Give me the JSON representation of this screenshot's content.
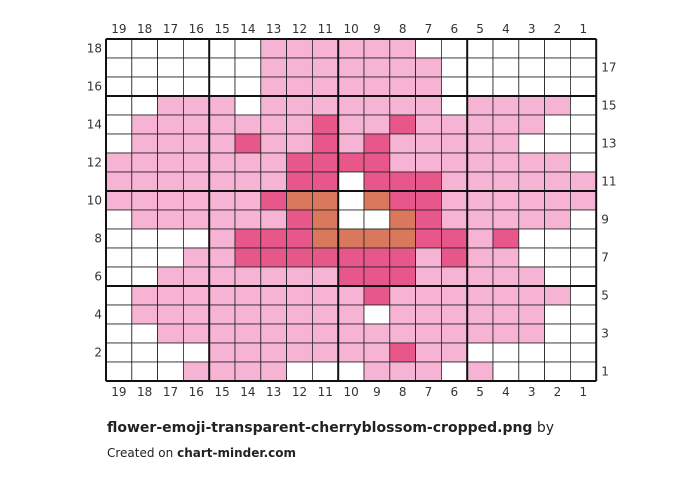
{
  "chart_data": {
    "type": "table",
    "columns": 19,
    "rows": 18,
    "column_labels": [
      "19",
      "18",
      "17",
      "16",
      "15",
      "14",
      "13",
      "12",
      "11",
      "10",
      "9",
      "8",
      "7",
      "6",
      "5",
      "4",
      "3",
      "2",
      "1"
    ],
    "left_row_labels": [
      "18",
      "16",
      "14",
      "12",
      "10",
      "8",
      "6",
      "4",
      "2"
    ],
    "right_row_labels": [
      "17",
      "15",
      "13",
      "11",
      "9",
      "7",
      "5",
      "3",
      "1"
    ],
    "legend": {
      ".": "#ffffff",
      "p": "#f6b3d4",
      "m": "#e8578a",
      "o": "#d9785c"
    },
    "grid": [
      "......pppppp.......",
      "......ppppppp......",
      "......ppppppp......",
      "..ppp.ppppppp.pppp.",
      ".pppppppmppmppppp..",
      ".ppppmppmpmppppp...",
      "pppppppmmmmppppppp.",
      "pppppppmm.mmmpppppp",
      "ppppppmoo.ommpppppp",
      ".ppppppmo..omppppp.",
      "....pmmmoooommpm...",
      "...ppmmmmmmmpmpp...",
      "..pppppppmmmppppp..",
      ".pppppppppmppppppp.",
      ".ppppppppp.pppppp..",
      "..ppppppppppppppp..",
      "....pppppppmpp.....",
      "...pppp...ppp.p...."
    ]
  },
  "footer": {
    "filename": "flower-emoji-transparent-cherryblossom-cropped.png",
    "by": "by",
    "created_on": "Created on",
    "site": "chart-minder.com"
  }
}
